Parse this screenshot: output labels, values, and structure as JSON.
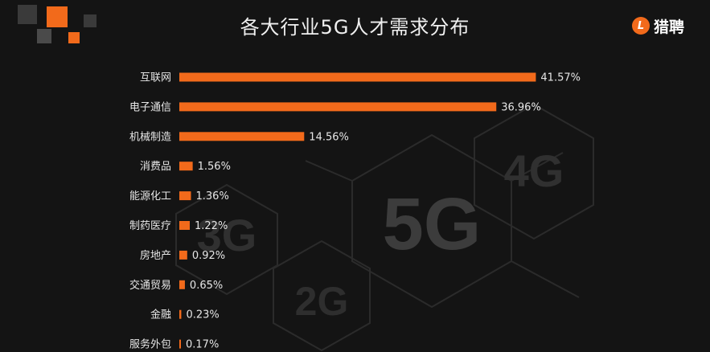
{
  "title": "各大行业5G人才需求分布",
  "brand": {
    "badge": "L",
    "name": "猎聘"
  },
  "background_labels": [
    "5G",
    "4G",
    "3G",
    "2G"
  ],
  "colors": {
    "bar": "#f26a1b",
    "text": "#e6e6e6",
    "background": "#141414"
  },
  "chart_data": {
    "type": "bar",
    "orientation": "horizontal",
    "title": "各大行业5G人才需求分布",
    "categories": [
      "互联网",
      "电子通信",
      "机械制造",
      "消费品",
      "能源化工",
      "制药医疗",
      "房地产",
      "交通贸易",
      "金融",
      "服务外包"
    ],
    "values": [
      41.57,
      36.96,
      14.56,
      1.56,
      1.36,
      1.22,
      0.92,
      0.65,
      0.23,
      0.17
    ],
    "value_labels": [
      "41.57%",
      "36.96%",
      "14.56%",
      "1.56%",
      "1.36%",
      "1.22%",
      "0.92%",
      "0.65%",
      "0.23%",
      "0.17%"
    ],
    "xlim": [
      0,
      42
    ],
    "grid": false,
    "legend": "none"
  }
}
